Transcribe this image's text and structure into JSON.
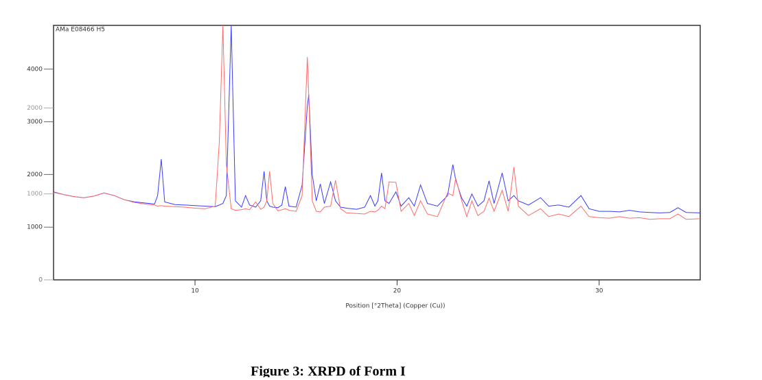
{
  "chart_data": {
    "type": "line",
    "annotation": "AMa E08466 H5",
    "xlabel": "Position [°2Theta] (Copper (Cu))",
    "caption": "Figure 3: XRPD of Form I",
    "xlim": [
      3,
      35
    ],
    "xticks": [
      10,
      20,
      30
    ],
    "ylim": [
      0,
      4830
    ],
    "yticks": [
      0,
      1000,
      2000,
      3000,
      4000
    ],
    "y2lim": [
      0,
      2960
    ],
    "y2ticks": [
      0,
      1000,
      2000
    ],
    "x": [
      3,
      3.5,
      4,
      4.5,
      5,
      5.5,
      6,
      6.5,
      7,
      7.5,
      8,
      8.15,
      8.33,
      8.5,
      9,
      9.5,
      10,
      10.5,
      11,
      11.2,
      11.38,
      11.55,
      11.79,
      12,
      12.3,
      12.5,
      12.7,
      13,
      13.25,
      13.42,
      13.55,
      13.69,
      13.85,
      14.1,
      14.3,
      14.47,
      14.65,
      15,
      15.3,
      15.56,
      15.63,
      15.8,
      16,
      16.2,
      16.4,
      16.71,
      16.95,
      17.2,
      17.5,
      18,
      18.4,
      18.68,
      18.9,
      19.05,
      19.23,
      19.4,
      19.6,
      19.94,
      20.2,
      20.58,
      20.85,
      21.16,
      21.5,
      22,
      22.5,
      22.76,
      22.9,
      23.2,
      23.45,
      23.7,
      24,
      24.3,
      24.55,
      24.8,
      25.2,
      25.5,
      25.78,
      26,
      26.5,
      27.1,
      27.5,
      28,
      28.5,
      29.1,
      29.5,
      30,
      30.5,
      31,
      31.5,
      32,
      32.5,
      33,
      33.5,
      33.9,
      34.3,
      35
    ],
    "series": [
      {
        "color": "#3a3aff",
        "values": [
          1670,
          1620,
          1580,
          1560,
          1590,
          1650,
          1600,
          1520,
          1480,
          1460,
          1440,
          1600,
          2290,
          1480,
          1430,
          1420,
          1410,
          1400,
          1390,
          1420,
          1450,
          1600,
          4830,
          1500,
          1380,
          1600,
          1420,
          1380,
          1500,
          2060,
          1500,
          1400,
          1380,
          1370,
          1420,
          1770,
          1400,
          1380,
          1800,
          3300,
          3520,
          2000,
          1500,
          1820,
          1450,
          1860,
          1500,
          1380,
          1360,
          1340,
          1380,
          1600,
          1400,
          1500,
          2030,
          1500,
          1450,
          1670,
          1400,
          1560,
          1400,
          1800,
          1450,
          1400,
          1600,
          2190,
          1900,
          1550,
          1400,
          1630,
          1400,
          1500,
          1880,
          1450,
          2030,
          1500,
          1600,
          1500,
          1420,
          1560,
          1400,
          1420,
          1380,
          1600,
          1350,
          1300,
          1300,
          1290,
          1320,
          1290,
          1280,
          1270,
          1280,
          1370,
          1280,
          1270
        ]
      },
      {
        "color": "#ff6a6a",
        "values": [
          1660,
          1620,
          1580,
          1560,
          1590,
          1650,
          1600,
          1520,
          1470,
          1440,
          1420,
          1400,
          1410,
          1400,
          1390,
          1380,
          1360,
          1350,
          1400,
          2600,
          4830,
          2200,
          1350,
          1320,
          1330,
          1350,
          1330,
          1480,
          1340,
          1380,
          1500,
          2060,
          1450,
          1310,
          1330,
          1350,
          1320,
          1300,
          1600,
          4230,
          3500,
          1500,
          1300,
          1290,
          1380,
          1400,
          1890,
          1350,
          1270,
          1260,
          1250,
          1300,
          1290,
          1320,
          1400,
          1350,
          1860,
          1850,
          1300,
          1450,
          1220,
          1500,
          1250,
          1200,
          1650,
          1600,
          1930,
          1500,
          1200,
          1500,
          1220,
          1300,
          1550,
          1300,
          1700,
          1300,
          2140,
          1400,
          1220,
          1350,
          1200,
          1250,
          1200,
          1400,
          1200,
          1180,
          1170,
          1200,
          1170,
          1180,
          1150,
          1160,
          1160,
          1250,
          1150,
          1160
        ]
      }
    ]
  }
}
